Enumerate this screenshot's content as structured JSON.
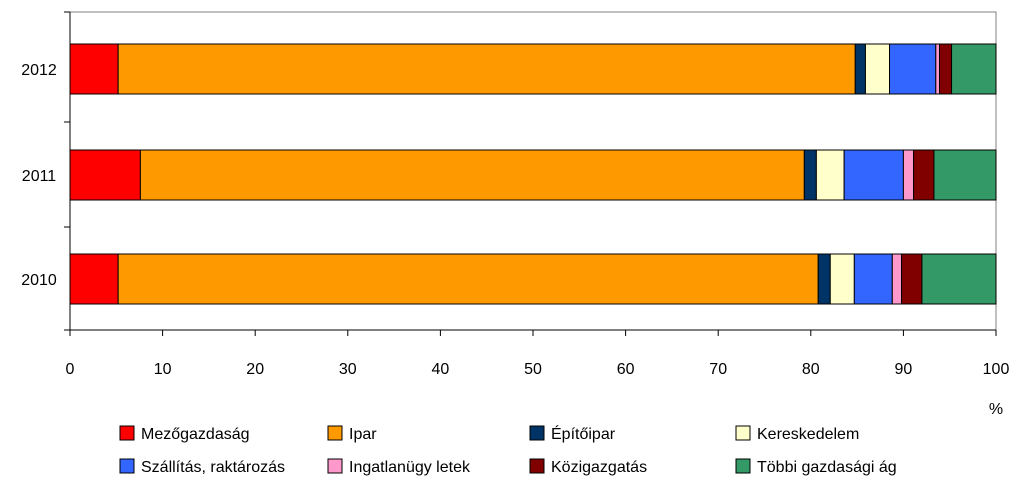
{
  "chart_data": {
    "type": "bar",
    "orientation": "horizontal",
    "stacked": true,
    "unit_label": "%",
    "xlim": [
      0,
      100
    ],
    "x_ticks": [
      0,
      10,
      20,
      30,
      40,
      50,
      60,
      70,
      80,
      90,
      100
    ],
    "grid": false,
    "legend_position": "bottom",
    "categories": [
      "2012",
      "2011",
      "2010"
    ],
    "series": [
      {
        "name": "Mezőgazdaság",
        "color": "#ff0000",
        "values": [
          5.2,
          7.6,
          5.2
        ]
      },
      {
        "name": "Ipar",
        "color": "#ff9900",
        "values": [
          79.6,
          71.7,
          75.6
        ]
      },
      {
        "name": "Építőipar",
        "color": "#003366",
        "values": [
          1.1,
          1.3,
          1.3
        ]
      },
      {
        "name": "Kereskedelem",
        "color": "#ffffcc",
        "values": [
          2.6,
          3.0,
          2.6
        ]
      },
      {
        "name": "Szállítás, raktározás",
        "color": "#3366ff",
        "values": [
          5.0,
          6.4,
          4.1
        ]
      },
      {
        "name": "Ingatlanügy letek",
        "color": "#ff99cc",
        "values": [
          0.4,
          1.1,
          1.0
        ]
      },
      {
        "name": "Közigazgatás",
        "color": "#800000",
        "values": [
          1.3,
          2.2,
          2.2
        ]
      },
      {
        "name": "Többi gazdasági ág",
        "color": "#339966",
        "values": [
          4.8,
          6.7,
          8.0
        ]
      }
    ]
  }
}
